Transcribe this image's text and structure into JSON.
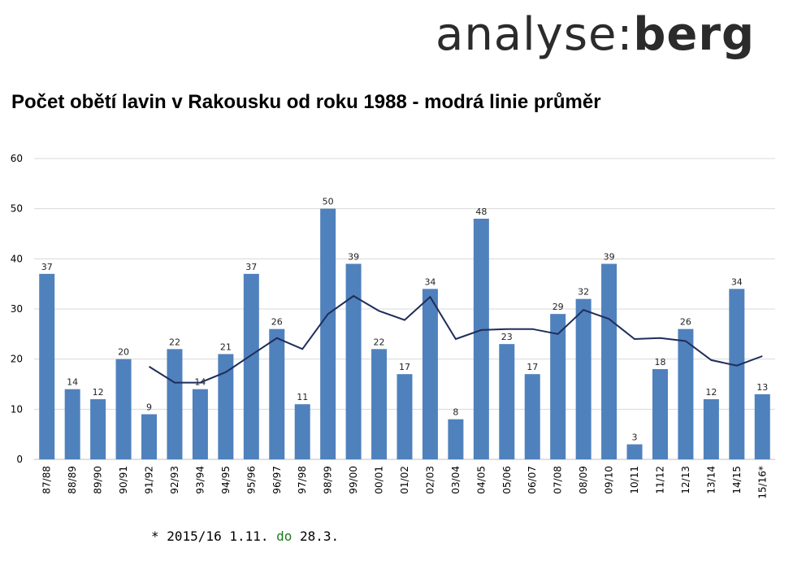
{
  "logo": {
    "light": "analyse:",
    "bold": "berg"
  },
  "title": "Počet obětí lavin v Rakousku od roku 1988 - modrá linie průměr",
  "footnote": {
    "prefix": "* 2015/16 1.11. ",
    "middle": "do",
    "suffix": " 28.3."
  },
  "colors": {
    "bar": "#4f81bd",
    "line": "#1f2d5a",
    "grid": "#d9d9d9"
  },
  "chart_data": {
    "type": "bar",
    "title": "Počet obětí lavin v Rakousku od roku 1988 - modrá linie průměr",
    "xlabel": "",
    "ylabel": "",
    "ylim": [
      0,
      60
    ],
    "yticks": [
      0,
      10,
      20,
      30,
      40,
      50,
      60
    ],
    "grid": true,
    "categories": [
      "87/88",
      "88/89",
      "89/90",
      "90/91",
      "91/92",
      "92/93",
      "93/94",
      "94/95",
      "95/96",
      "96/97",
      "97/98",
      "98/99",
      "99/00",
      "00/01",
      "01/02",
      "02/03",
      "03/04",
      "04/05",
      "05/06",
      "06/07",
      "07/08",
      "08/09",
      "09/10",
      "10/11",
      "11/12",
      "12/13",
      "13/14",
      "14/15",
      "15/16*"
    ],
    "series": [
      {
        "type": "bar",
        "values": [
          37,
          14,
          12,
          20,
          9,
          22,
          14,
          21,
          37,
          26,
          11,
          50,
          39,
          22,
          17,
          34,
          8,
          48,
          23,
          17,
          29,
          32,
          39,
          3,
          18,
          26,
          12,
          34,
          13
        ]
      },
      {
        "type": "line",
        "values": [
          null,
          null,
          null,
          null,
          18.5,
          15.3,
          15.3,
          17.4,
          20.8,
          24.2,
          22,
          29,
          32.6,
          29.6,
          27.8,
          32.4,
          24,
          25.8,
          26,
          26,
          25,
          29.8,
          28,
          24,
          24.2,
          23.6,
          19.8,
          18.7,
          20.6
        ]
      }
    ]
  }
}
